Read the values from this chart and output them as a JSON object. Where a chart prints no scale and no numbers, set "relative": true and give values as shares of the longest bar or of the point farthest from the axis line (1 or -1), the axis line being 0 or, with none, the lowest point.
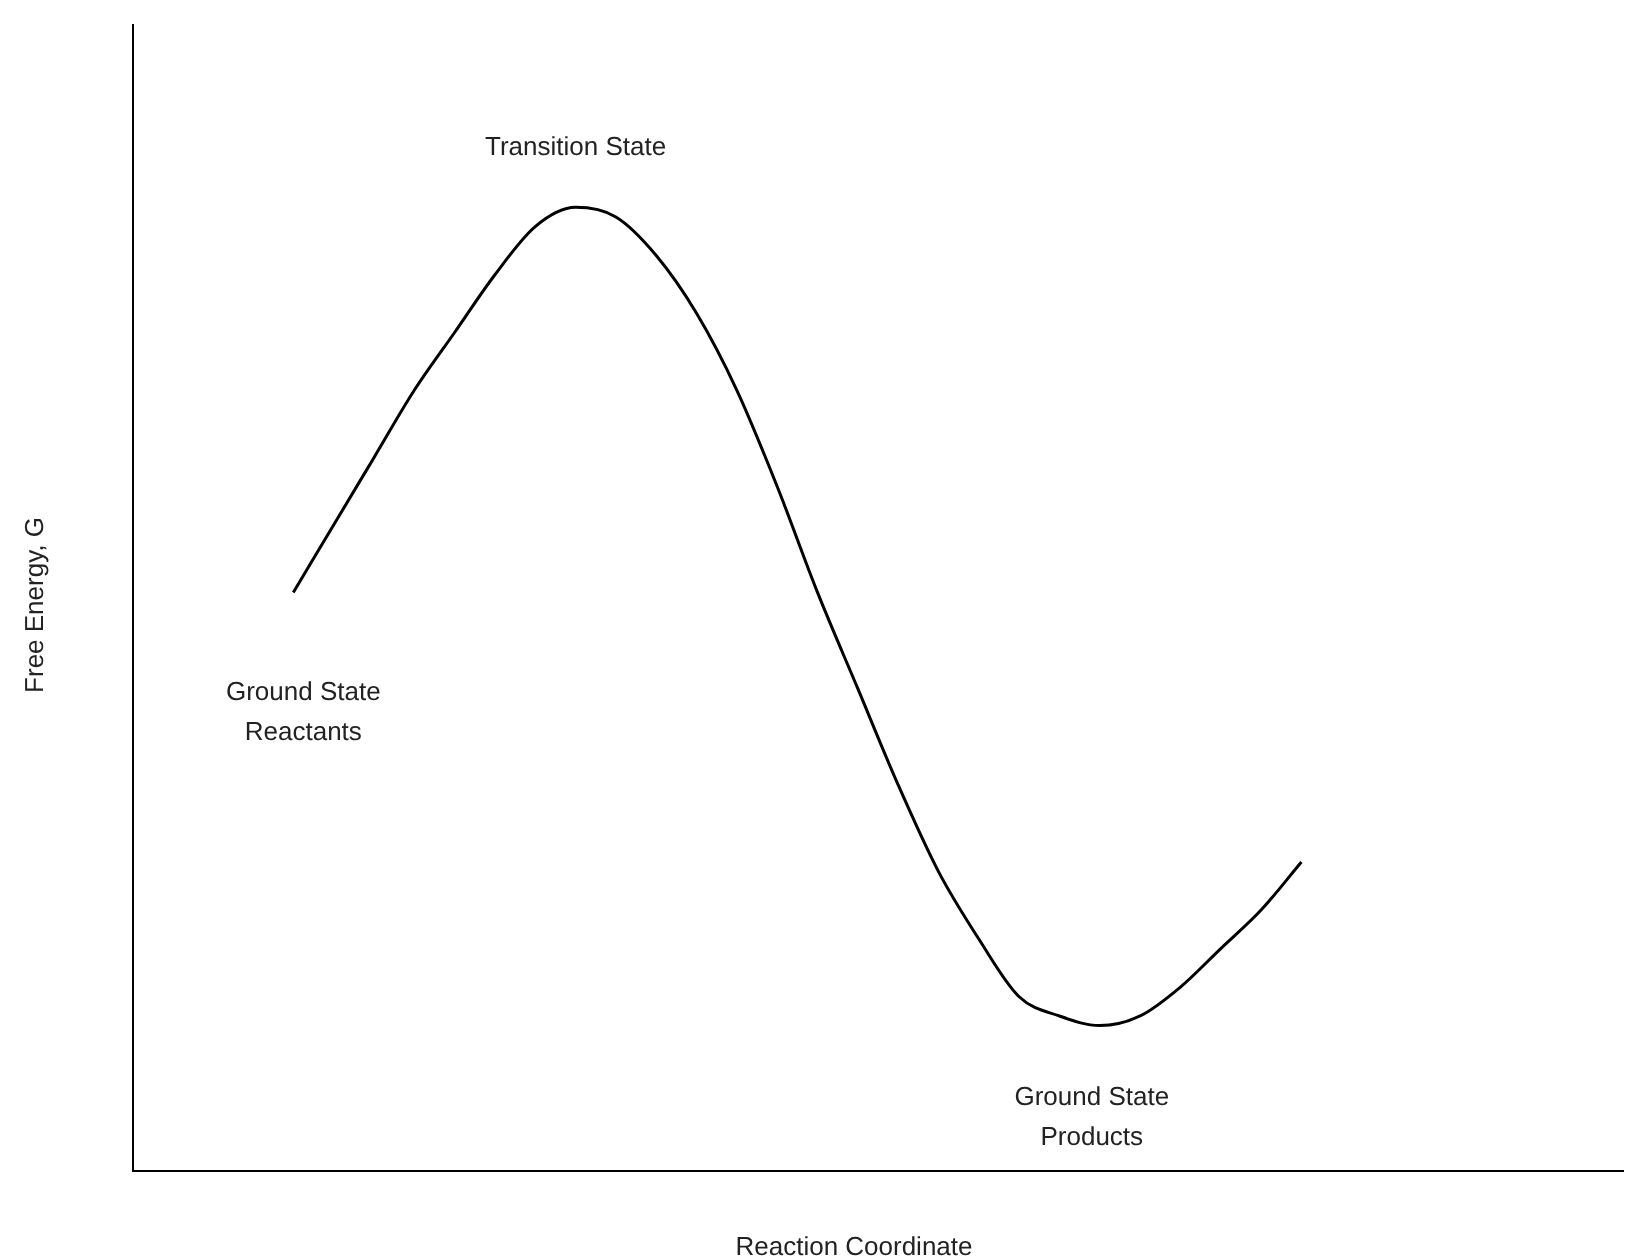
{
  "chart_data": {
    "type": "line",
    "relative": true,
    "marker": "none",
    "tick_labels": false,
    "color": "#000000",
    "xlabel": "Reaction Coordinate",
    "ylabel": "Free Energy, G",
    "annotations": [
      "Transition State",
      "Ground State\nReactants",
      "Ground State\nProducts"
    ],
    "categories": [
      null,
      null,
      null,
      null,
      null,
      null,
      null,
      null,
      null,
      null,
      null,
      null,
      null,
      null,
      null,
      null,
      null,
      null,
      null,
      null,
      null,
      null,
      null,
      null,
      null,
      null,
      null,
      null,
      null,
      null,
      null,
      null,
      null,
      null,
      null,
      null,
      null,
      null
    ],
    "values": [
      null,
      null,
      null,
      null,
      0.6,
      0.67,
      0.74,
      0.81,
      0.87,
      0.93,
      0.98,
      1,
      0.99,
      0.95,
      0.89,
      0.81,
      0.71,
      0.6,
      0.5,
      0.4,
      0.31,
      0.24,
      0.18,
      0.16,
      0.15,
      0.16,
      0.19,
      0.23,
      0.27,
      0.32,
      null,
      null,
      null,
      null,
      null,
      null,
      null,
      null
    ]
  }
}
